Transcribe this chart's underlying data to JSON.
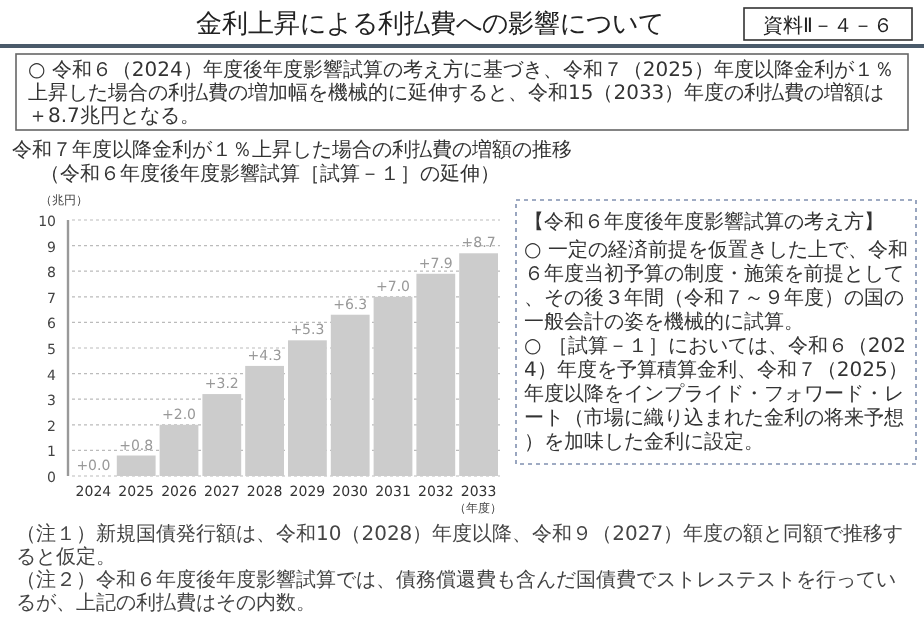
{
  "chart_data": {
    "type": "bar",
    "title": "金利上昇による利払費への影響について",
    "subtitle": "令和７年度以降金利が１％上昇した場合の利払費の増額の推移",
    "ylabel": "（兆円）",
    "xlabel": "（年度）",
    "categories": [
      "2024",
      "2025",
      "2026",
      "2027",
      "2028",
      "2029",
      "2030",
      "2031",
      "2032",
      "2033"
    ],
    "values": [
      0,
      0.8,
      2.0,
      3.2,
      4.3,
      5.3,
      6.3,
      7.0,
      7.9,
      8.7
    ],
    "value_labels": [
      "+0.0",
      "+0.8",
      "+2.0",
      "+3.2",
      "+4.3",
      "+5.3",
      "+6.3",
      "+7.0",
      "+7.9",
      "+8.7"
    ],
    "color": "#cccccc",
    "ylim": [
      0,
      10
    ],
    "yticks": [
      0,
      1,
      2,
      3,
      4,
      5,
      6,
      7,
      8,
      9,
      10
    ],
    "grid": "y",
    "annotations": [
      "資料Ⅱ－４－６",
      "○ 令和６（2024）年度後年度影響試算の考え方に基づき、令和７（2025）年度以降金利が１％上昇した場合の利払費の増加幅を機械的に延伸すると、令和15（2033）年度の利払費の増額は＋8.7兆円となる。",
      "【令和６年度後年度影響試算の考え方】",
      "○ 一定の経済前提を仮置きした上で、令和６年度当初予算の制度・施策を前提として、その後３年間（令和７～９年度）の国の一般会計の姿を機械的に試算。",
      "○ ［試算－１］においては、令和６（2024）年度を予算積算金利、令和７（2025）年度以降をインプライド・フォワード・レート（市場に織り込まれた金利の将来予想）を加味した金利に設定。",
      "（注１）新規国債発行額は、令和10（2028）年度以降、令和９（2027）年度の額と同額で推移すると仮定。",
      "（注２）令和６年度後年度影響試算では、債務償還費も含んだ国債費でストレステストを行っているが、上記の利払費はその内数。",
      "（令和６年度後年度影響試算［試算－１］の延伸）"
    ]
  }
}
